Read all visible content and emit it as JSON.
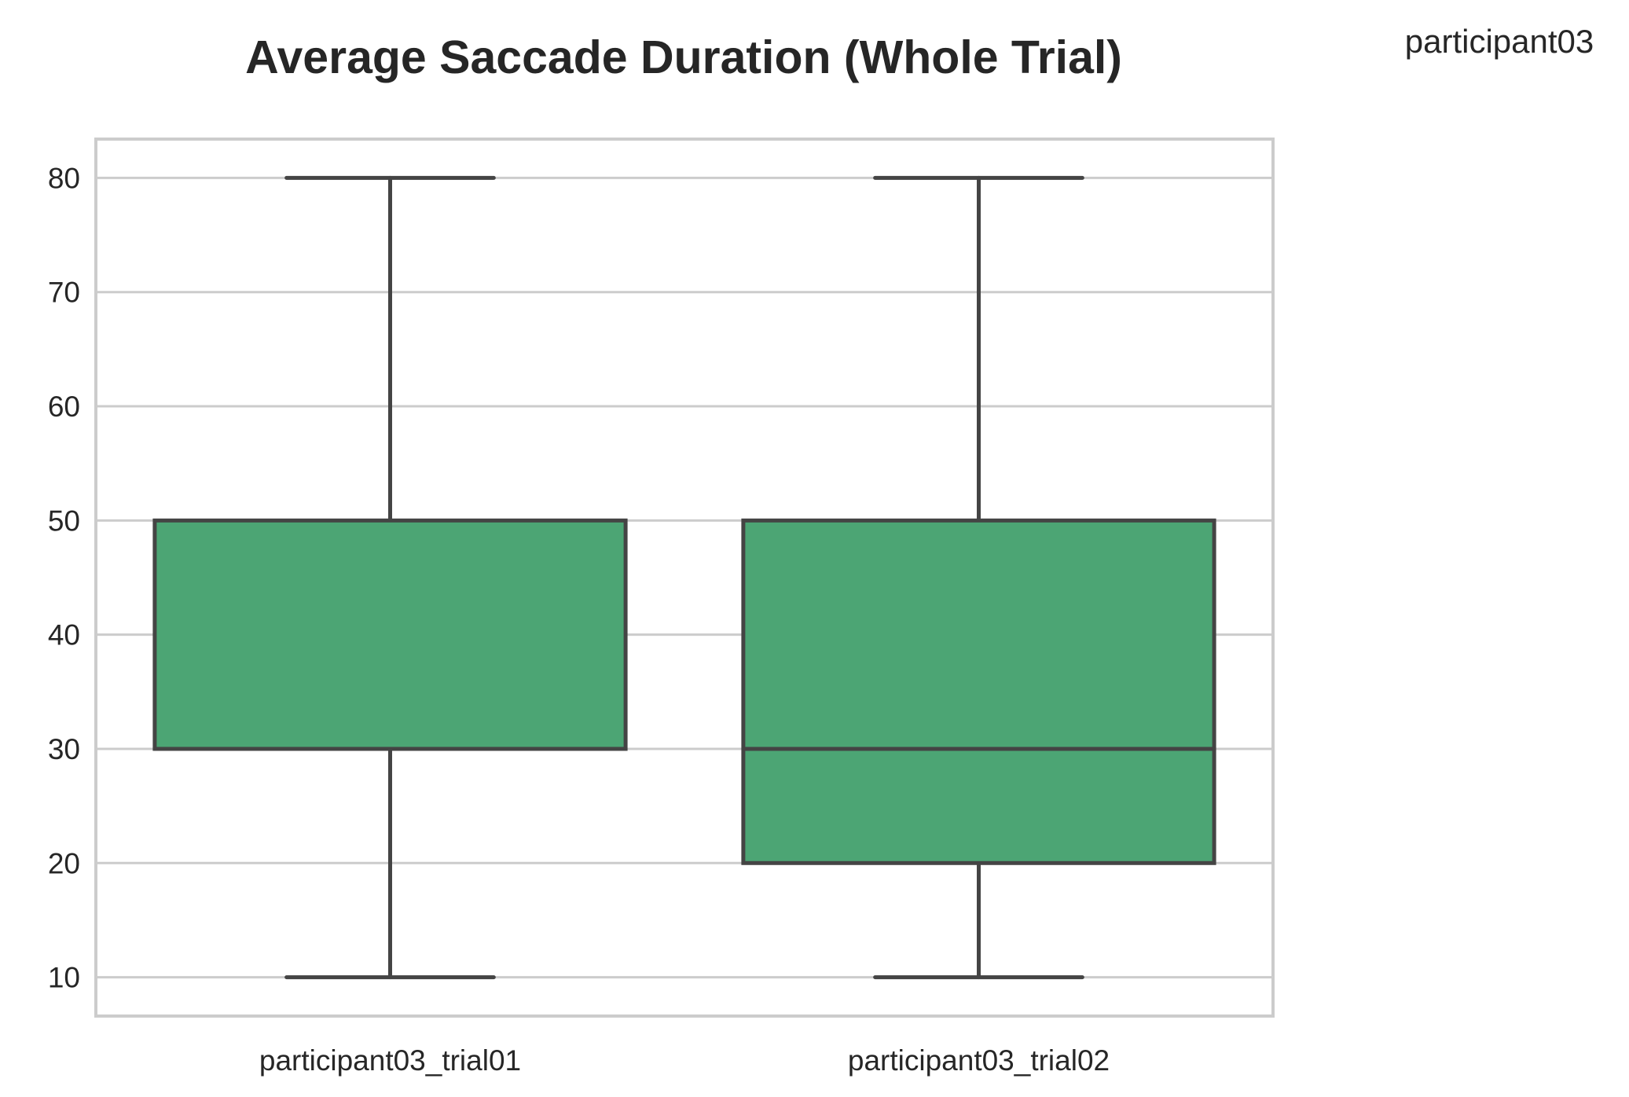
{
  "corner_label": "participant03",
  "chart_data": {
    "type": "box",
    "title": "Average Saccade Duration (Whole Trial)",
    "xlabel": "",
    "ylabel": "",
    "categories": [
      "participant03_trial01",
      "participant03_trial02"
    ],
    "boxes": [
      {
        "category": "participant03_trial01",
        "whisker_low": 10,
        "q1": 30,
        "median": 30,
        "q3": 50,
        "whisker_high": 80
      },
      {
        "category": "participant03_trial02",
        "whisker_low": 10,
        "q1": 20,
        "median": 30,
        "q3": 50,
        "whisker_high": 80
      }
    ],
    "yticks": [
      10,
      20,
      30,
      40,
      50,
      60,
      70,
      80
    ],
    "ylim": [
      6.6,
      83.4
    ],
    "grid": true,
    "box_color": "#4ca574",
    "line_color": "#444444",
    "grid_color": "#cccccc"
  }
}
